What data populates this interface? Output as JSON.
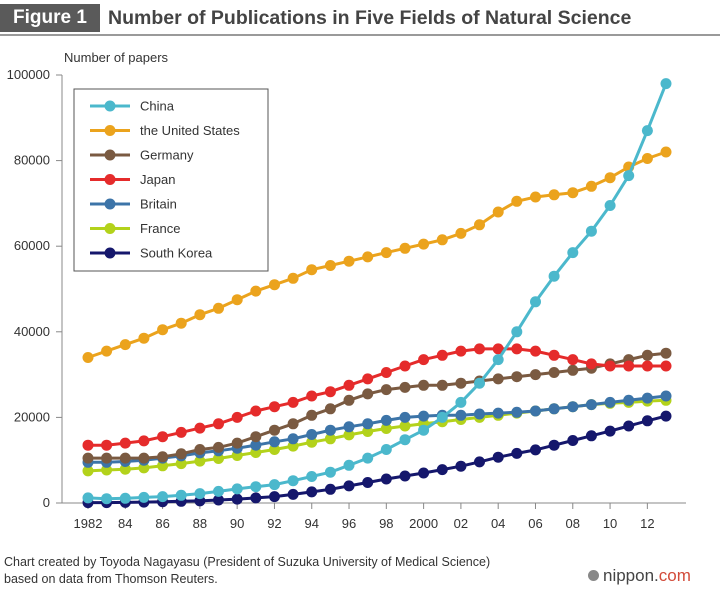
{
  "header": {
    "badge": "Figure 1",
    "title": "Number of Publications in Five Fields of Natural Science"
  },
  "footer": {
    "note": "Chart created by Toyoda Nagayasu (President of Suzuka University of Medical Science) based on data from Thomson Reuters.",
    "brand_main": "nippon.",
    "brand_suffix": "com"
  },
  "chart_data": {
    "type": "line",
    "title": "Number of Publications in Five Fields of Natural Science",
    "ylabel": "Number of papers",
    "xlabel": "",
    "x": [
      1982,
      1983,
      1984,
      1985,
      1986,
      1987,
      1988,
      1989,
      1990,
      1991,
      1992,
      1993,
      1994,
      1995,
      1996,
      1997,
      1998,
      1999,
      2000,
      2001,
      2002,
      2003,
      2004,
      2005,
      2006,
      2007,
      2008,
      2009,
      2010,
      2011,
      2012,
      2013
    ],
    "x_tick_labels": [
      "1982",
      "84",
      "86",
      "88",
      "90",
      "92",
      "94",
      "96",
      "98",
      "2000",
      "02",
      "04",
      "06",
      "08",
      "10",
      "12"
    ],
    "x_tick_values": [
      1982,
      1984,
      1986,
      1988,
      1990,
      1992,
      1994,
      1996,
      1998,
      2000,
      2002,
      2004,
      2006,
      2008,
      2010,
      2012
    ],
    "y_ticks": [
      "0",
      "20000",
      "40000",
      "60000",
      "80000",
      "100000"
    ],
    "ylim": [
      0,
      100000
    ],
    "legend_position": "top-left",
    "grid": false,
    "series": [
      {
        "name": "China",
        "color": "#4bb8cc",
        "values": [
          1200,
          1000,
          1100,
          1300,
          1500,
          1800,
          2200,
          2700,
          3300,
          3800,
          4300,
          5200,
          6200,
          7200,
          8800,
          10500,
          12500,
          14800,
          17000,
          20000,
          23500,
          28000,
          33500,
          40000,
          47000,
          53000,
          58500,
          63500,
          69500,
          76500,
          87000,
          98000
        ]
      },
      {
        "name": "the United States",
        "color": "#eba31d",
        "values": [
          34000,
          35500,
          37000,
          38500,
          40500,
          42000,
          44000,
          45500,
          47500,
          49500,
          51000,
          52500,
          54500,
          55500,
          56500,
          57500,
          58500,
          59500,
          60500,
          61500,
          63000,
          65000,
          68000,
          70500,
          71500,
          72000,
          72500,
          74000,
          76000,
          78500,
          80500,
          82000
        ]
      },
      {
        "name": "Germany",
        "color": "#7a5a41",
        "values": [
          10500,
          10500,
          10500,
          10500,
          10800,
          11500,
          12500,
          13000,
          14000,
          15500,
          17000,
          18500,
          20500,
          22000,
          24000,
          25500,
          26500,
          27000,
          27500,
          27500,
          28000,
          28500,
          29000,
          29500,
          30000,
          30500,
          31000,
          31500,
          32500,
          33500,
          34500,
          35000
        ]
      },
      {
        "name": "Japan",
        "color": "#e52b2b",
        "values": [
          13500,
          13500,
          14000,
          14500,
          15500,
          16500,
          17500,
          18500,
          20000,
          21500,
          22500,
          23500,
          25000,
          26000,
          27500,
          29000,
          30500,
          32000,
          33500,
          34500,
          35500,
          36000,
          36000,
          36000,
          35500,
          34500,
          33500,
          32500,
          32000,
          32000,
          32000,
          32000
        ]
      },
      {
        "name": "Britain",
        "color": "#3c74a8",
        "values": [
          9500,
          9500,
          9700,
          10000,
          10500,
          11000,
          11700,
          12200,
          12800,
          13500,
          14300,
          15000,
          16000,
          17000,
          17800,
          18500,
          19300,
          20000,
          20300,
          20500,
          20500,
          20800,
          21000,
          21200,
          21500,
          22000,
          22500,
          23000,
          23500,
          24000,
          24500,
          25000
        ]
      },
      {
        "name": "France",
        "color": "#b3d21b",
        "values": [
          7500,
          7700,
          7900,
          8200,
          8700,
          9200,
          9800,
          10400,
          11100,
          11800,
          12500,
          13300,
          14200,
          15000,
          15900,
          16700,
          17400,
          18000,
          18500,
          19000,
          19500,
          20000,
          20500,
          21000,
          21500,
          22000,
          22500,
          23000,
          23300,
          23500,
          23800,
          24000
        ]
      },
      {
        "name": "South Korea",
        "color": "#15176c",
        "values": [
          100,
          100,
          150,
          200,
          300,
          400,
          500,
          700,
          900,
          1200,
          1500,
          2000,
          2600,
          3200,
          4000,
          4800,
          5600,
          6300,
          7000,
          7800,
          8600,
          9600,
          10700,
          11600,
          12400,
          13500,
          14600,
          15700,
          16800,
          18000,
          19200,
          20300
        ]
      }
    ]
  }
}
